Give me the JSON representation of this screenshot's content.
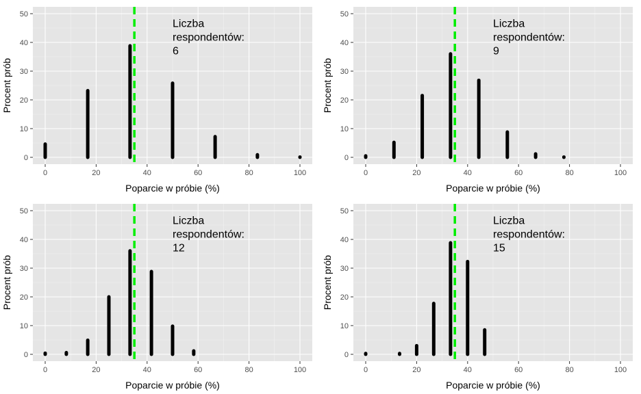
{
  "chart_data": [
    {
      "type": "bar",
      "xlabel": "Poparcie w próbie (%)",
      "ylabel": "Procent prób",
      "xlim": [
        0,
        100
      ],
      "ylim": [
        0,
        50
      ],
      "x_ticks": [
        "0",
        "20",
        "40",
        "60",
        "80",
        "100"
      ],
      "y_ticks": [
        "0",
        "10",
        "20",
        "30",
        "40",
        "50"
      ],
      "annotation": [
        "Liczba",
        "respondentów:",
        "6"
      ],
      "reference_line": {
        "x": 35,
        "color": "#00ee00",
        "style": "dashed"
      },
      "bar_color": "#000000",
      "grid": true,
      "x": [
        0,
        16.7,
        33.3,
        50,
        66.7,
        83.3,
        100
      ],
      "values": [
        4.6,
        23.2,
        38.8,
        25.8,
        7.2,
        0.9,
        0.1
      ]
    },
    {
      "type": "bar",
      "xlabel": "Poparcie w próbie (%)",
      "ylabel": "Procent prób",
      "xlim": [
        0,
        100
      ],
      "ylim": [
        0,
        50
      ],
      "x_ticks": [
        "0",
        "20",
        "40",
        "60",
        "80",
        "100"
      ],
      "y_ticks": [
        "0",
        "10",
        "20",
        "30",
        "40",
        "50"
      ],
      "annotation": [
        "Liczba",
        "respondentów:",
        "9"
      ],
      "reference_line": {
        "x": 35,
        "color": "#00ee00",
        "style": "dashed"
      },
      "bar_color": "#000000",
      "grid": true,
      "x": [
        0,
        11.1,
        22.2,
        33.3,
        44.4,
        55.6,
        66.7,
        77.8
      ],
      "values": [
        0.5,
        5.2,
        21.5,
        36.0,
        26.8,
        8.8,
        1.2,
        0.1
      ]
    },
    {
      "type": "bar",
      "xlabel": "Poparcie w próbie (%)",
      "ylabel": "Procent prób",
      "xlim": [
        0,
        100
      ],
      "ylim": [
        0,
        50
      ],
      "x_ticks": [
        "0",
        "20",
        "40",
        "60",
        "80",
        "100"
      ],
      "y_ticks": [
        "0",
        "10",
        "20",
        "30",
        "40",
        "50"
      ],
      "annotation": [
        "Liczba",
        "respondentów:",
        "12"
      ],
      "reference_line": {
        "x": 35,
        "color": "#00ee00",
        "style": "dashed"
      },
      "bar_color": "#000000",
      "grid": true,
      "x": [
        0,
        8.3,
        16.7,
        25,
        33.3,
        41.7,
        50,
        58.3
      ],
      "values": [
        0.4,
        0.6,
        4.9,
        20.0,
        36.0,
        28.8,
        9.8,
        1.2
      ]
    },
    {
      "type": "bar",
      "xlabel": "Poparcie w próbie (%)",
      "ylabel": "Procent prób",
      "xlim": [
        0,
        100
      ],
      "ylim": [
        0,
        50
      ],
      "x_ticks": [
        "0",
        "20",
        "40",
        "60",
        "80",
        "100"
      ],
      "y_ticks": [
        "0",
        "10",
        "20",
        "30",
        "40",
        "50"
      ],
      "annotation": [
        "Liczba",
        "respondentów:",
        "15"
      ],
      "reference_line": {
        "x": 35,
        "color": "#00ee00",
        "style": "dashed"
      },
      "bar_color": "#000000",
      "grid": true,
      "x": [
        0,
        13.3,
        20,
        26.7,
        33.3,
        40,
        46.7
      ],
      "values": [
        0.3,
        0.3,
        3.0,
        17.7,
        38.8,
        32.3,
        8.5
      ]
    }
  ]
}
